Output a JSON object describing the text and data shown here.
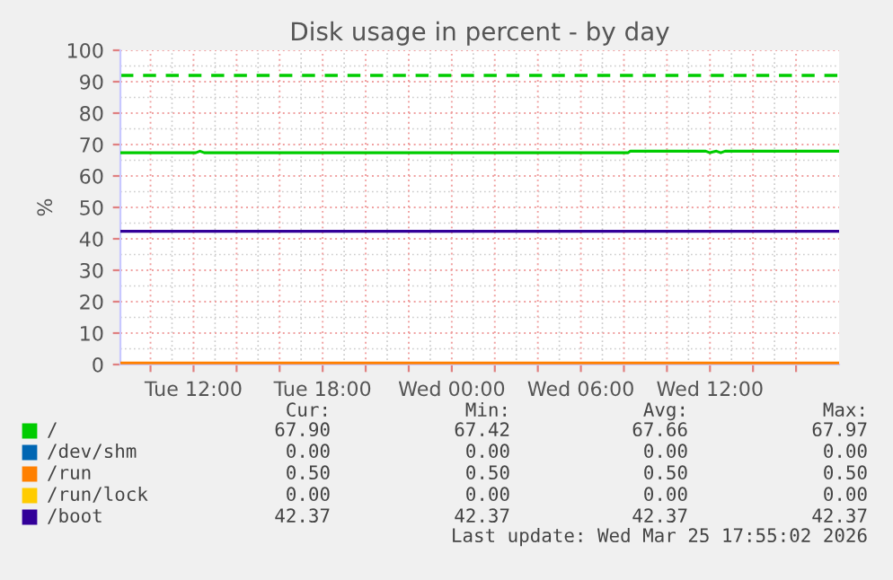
{
  "chart_data": {
    "type": "line",
    "title": "Disk usage in percent - by day",
    "ylabel": "%",
    "xlim": [
      "2026-03-24T08:36",
      "2026-03-25T18:00"
    ],
    "ylim": [
      0,
      100
    ],
    "xticks": [
      {
        "value": "2026-03-24T10:00",
        "label": null
      },
      {
        "value": "2026-03-24T12:00",
        "label": "Tue 12:00"
      },
      {
        "value": "2026-03-24T14:00",
        "label": null
      },
      {
        "value": "2026-03-24T16:00",
        "label": null
      },
      {
        "value": "2026-03-24T18:00",
        "label": "Tue 18:00"
      },
      {
        "value": "2026-03-24T20:00",
        "label": null
      },
      {
        "value": "2026-03-24T22:00",
        "label": null
      },
      {
        "value": "2026-03-25T00:00",
        "label": "Wed 00:00"
      },
      {
        "value": "2026-03-25T02:00",
        "label": null
      },
      {
        "value": "2026-03-25T04:00",
        "label": null
      },
      {
        "value": "2026-03-25T06:00",
        "label": "Wed 06:00"
      },
      {
        "value": "2026-03-25T08:00",
        "label": null
      },
      {
        "value": "2026-03-25T10:00",
        "label": null
      },
      {
        "value": "2026-03-25T12:00",
        "label": "Wed 12:00"
      },
      {
        "value": "2026-03-25T14:00",
        "label": null
      },
      {
        "value": "2026-03-25T16:00",
        "label": null
      }
    ],
    "yticks": [
      0,
      10,
      20,
      30,
      40,
      50,
      60,
      70,
      80,
      90,
      100
    ],
    "grid": true,
    "legend": "bottom",
    "line_style": "solid",
    "marker": "none",
    "ref_lines": [
      {
        "axis": "y",
        "value": 92,
        "color": "#00cc00",
        "line_style": "dashed"
      }
    ],
    "series": [
      {
        "name": "/",
        "color": "#00cc00",
        "x": [
          "2026-03-24T08:36",
          "2026-03-24T12:06",
          "2026-03-24T12:18",
          "2026-03-24T12:30",
          "2026-03-25T08:12",
          "2026-03-25T08:18",
          "2026-03-25T11:48",
          "2026-03-25T12:00",
          "2026-03-25T12:18",
          "2026-03-25T12:30",
          "2026-03-25T12:42",
          "2026-03-25T18:00"
        ],
        "values": [
          67.4,
          67.4,
          67.9,
          67.4,
          67.4,
          67.9,
          67.9,
          67.4,
          67.9,
          67.4,
          67.9,
          67.9
        ]
      },
      {
        "name": "/dev/shm",
        "color": "#0066b3"
      },
      {
        "name": "/run",
        "color": "#ff8000",
        "x": [
          "2026-03-24T08:36",
          "2026-03-25T18:00"
        ],
        "values": [
          0.5,
          0.5
        ]
      },
      {
        "name": "/run/lock",
        "color": "#ffcc00"
      },
      {
        "name": "/boot",
        "color": "#330099",
        "x": [
          "2026-03-24T08:36",
          "2026-03-25T18:00"
        ],
        "values": [
          42.4,
          42.4
        ]
      }
    ],
    "annotations": [
      "Cur:",
      "Min:",
      "Avg:",
      "Max:",
      "67.90",
      "67.42",
      "67.66",
      "67.97",
      "0.00",
      "0.00",
      "0.00",
      "0.00",
      "0.50",
      "0.50",
      "0.50",
      "0.50",
      "0.00",
      "0.00",
      "0.00",
      "0.00",
      "42.37",
      "42.37",
      "42.37",
      "42.37",
      "Last update: Wed Mar 25 17:55:02 2026"
    ]
  }
}
